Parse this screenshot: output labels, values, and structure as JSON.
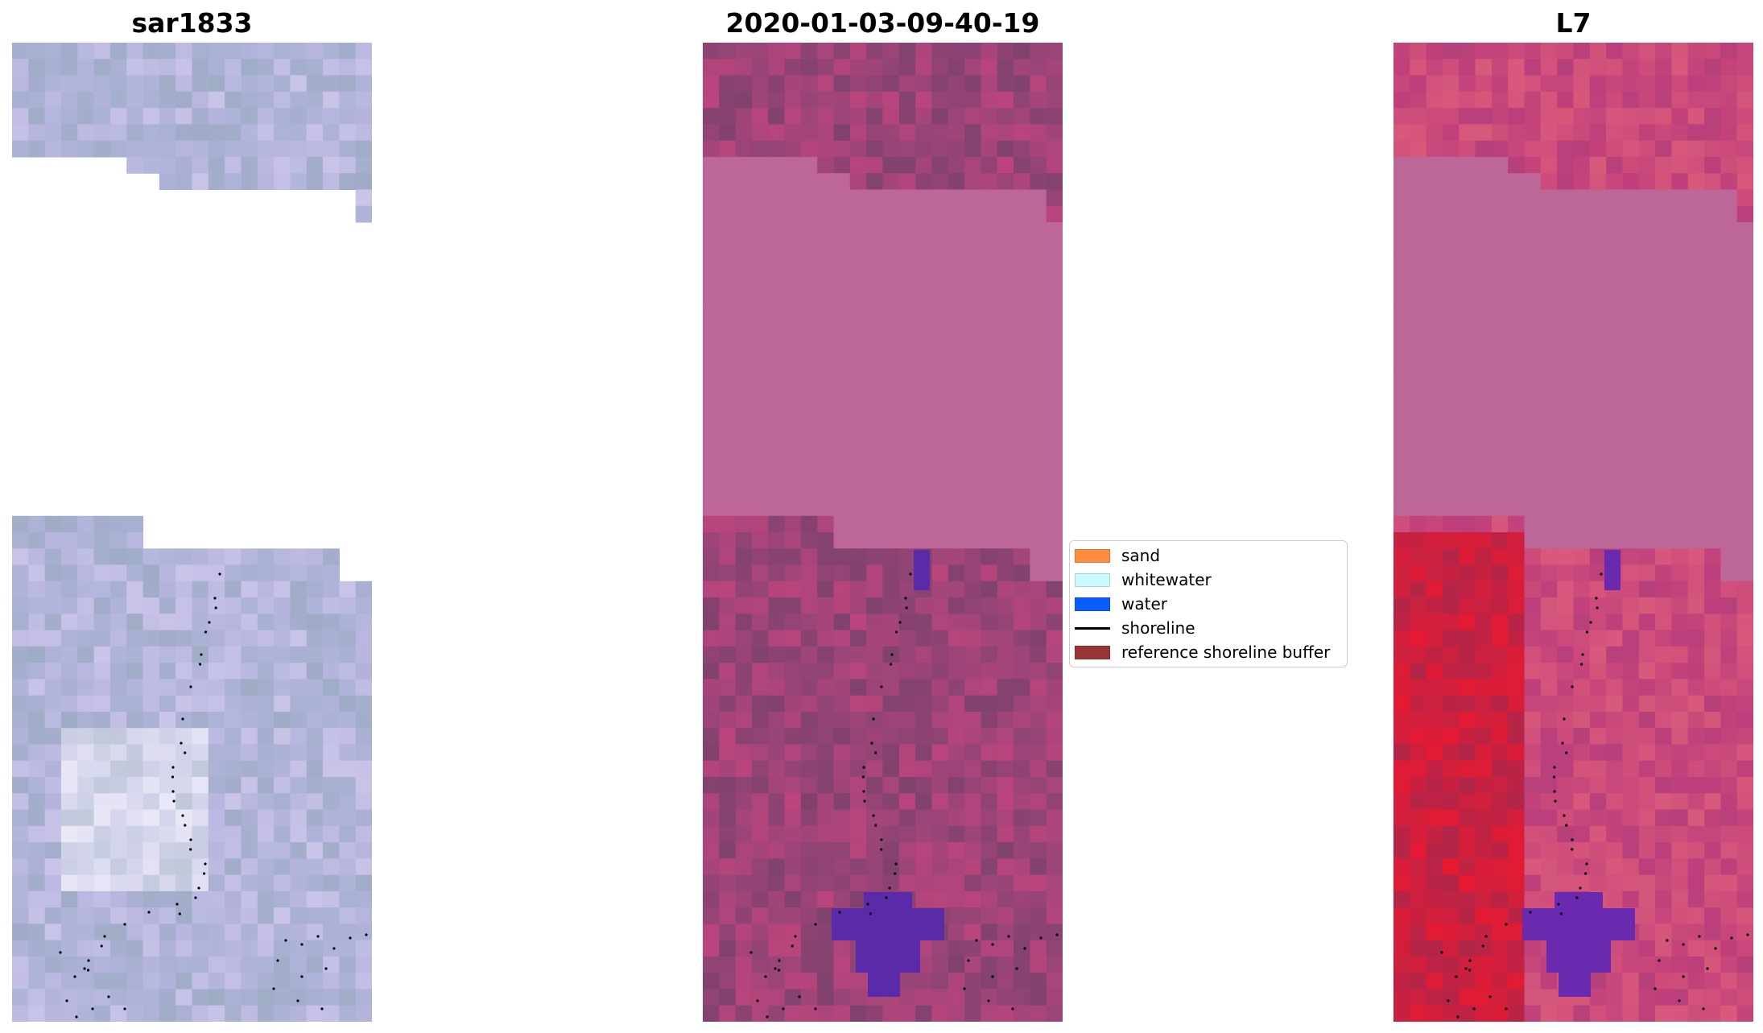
{
  "panels": [
    {
      "title": "sar1833",
      "style": "sar"
    },
    {
      "title": "2020-01-03-09-40-19",
      "style": "classified"
    },
    {
      "title": "L7",
      "style": "falsecolor"
    }
  ],
  "legend": {
    "items": [
      {
        "label": "sand",
        "color": "#ff8c3f",
        "kind": "patch"
      },
      {
        "label": "whitewater",
        "color": "#c8faff",
        "kind": "patch"
      },
      {
        "label": "water",
        "color": "#0a5cff",
        "kind": "patch"
      },
      {
        "label": "shoreline",
        "color": "#000000",
        "kind": "line"
      },
      {
        "label": "reference shoreline buffer",
        "color": "#9a3535",
        "kind": "patch"
      }
    ]
  }
}
